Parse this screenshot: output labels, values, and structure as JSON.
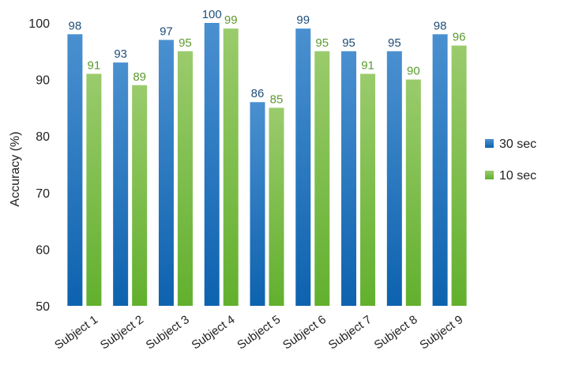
{
  "chart_data": {
    "type": "bar",
    "title": "",
    "xlabel": "",
    "ylabel": "Accuracy (%)",
    "ylim": [
      50,
      100
    ],
    "yticks": [
      50,
      60,
      70,
      80,
      90,
      100
    ],
    "grid": false,
    "legend_position": "right",
    "categories": [
      "Subject 1",
      "Subject 2",
      "Subject 3",
      "Subject 4",
      "Subject 5",
      "Subject 6",
      "Subject 7",
      "Subject 8",
      "Subject 9"
    ],
    "series": [
      {
        "name": "30 sec",
        "color": "#1f6fb5",
        "label_color": "#1f4e79",
        "values": [
          98,
          93,
          97,
          100,
          86,
          99,
          95,
          95,
          98
        ]
      },
      {
        "name": "10 sec",
        "color": "#72b843",
        "label_color": "#5b9a2e",
        "values": [
          91,
          89,
          95,
          99,
          85,
          95,
          91,
          90,
          96
        ]
      }
    ]
  }
}
